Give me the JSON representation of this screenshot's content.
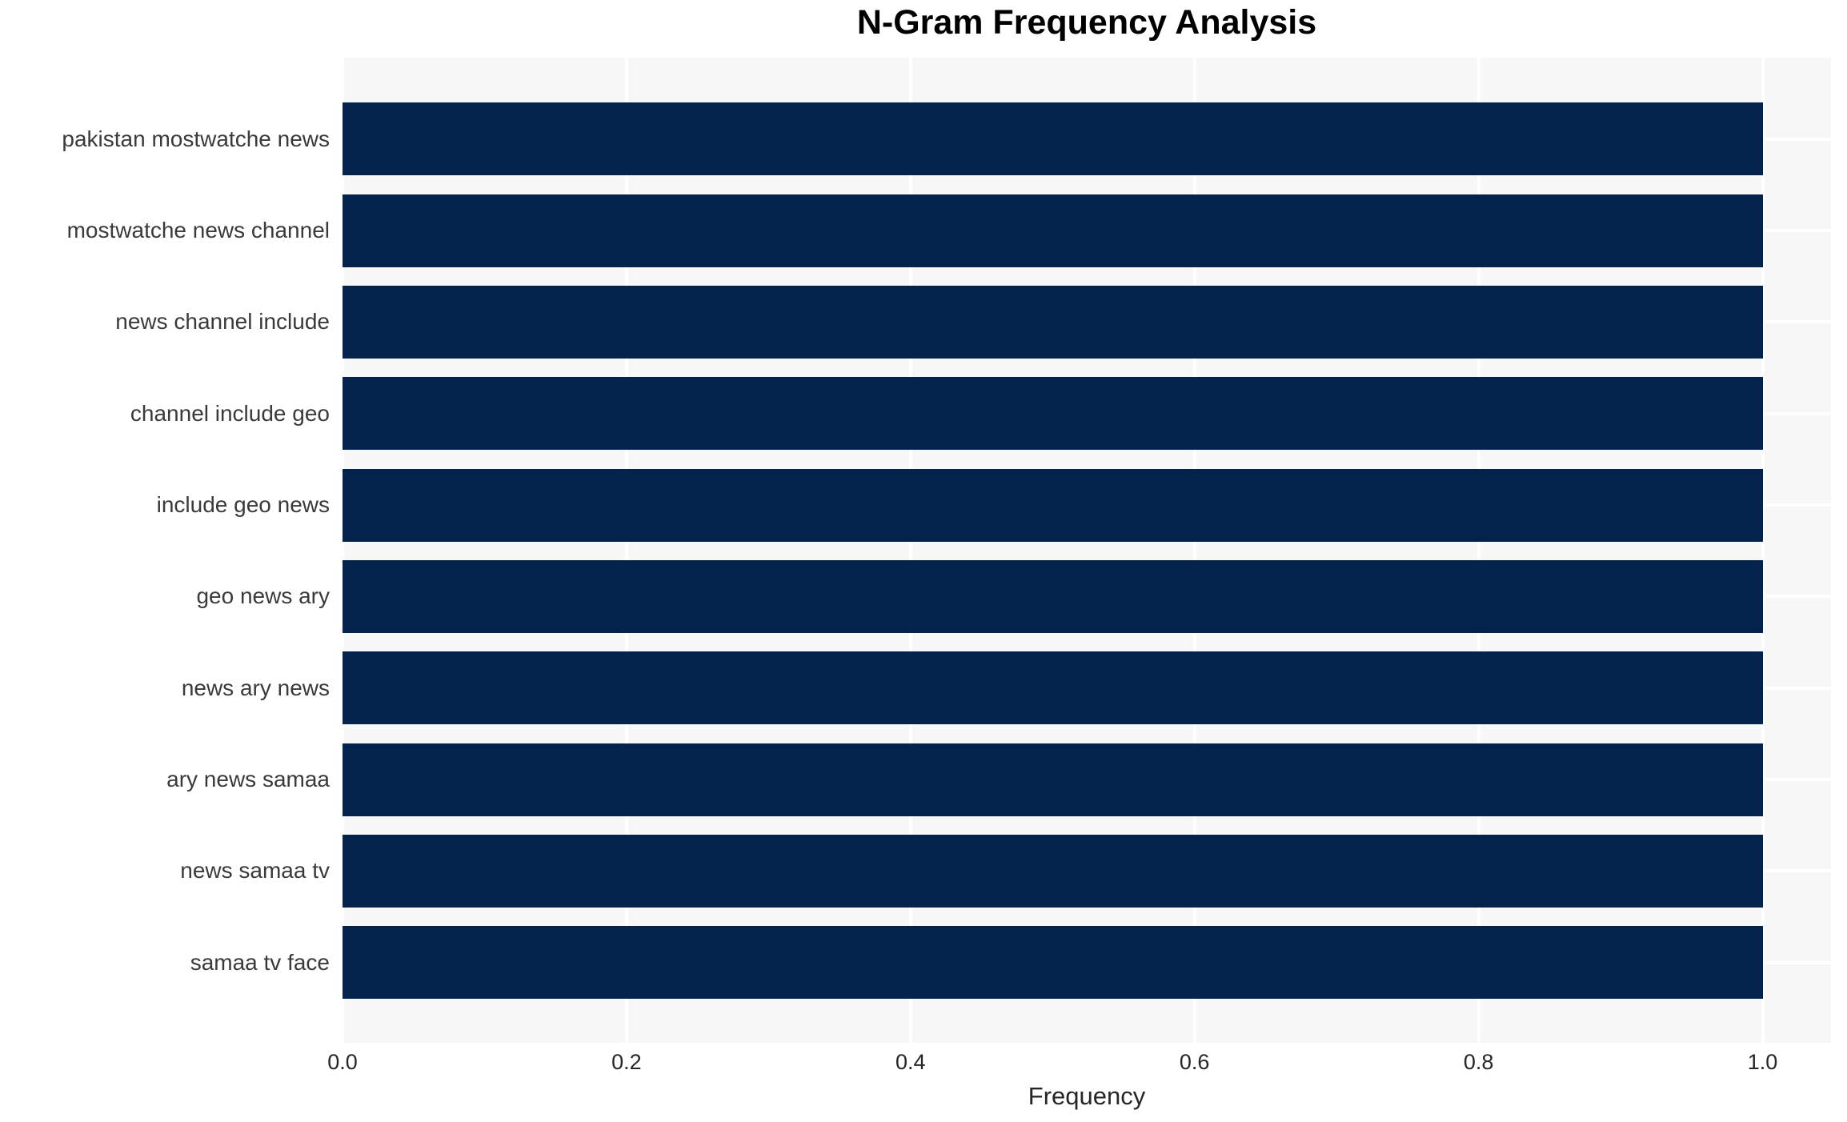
{
  "chart_data": {
    "type": "bar",
    "orientation": "horizontal",
    "title": "N-Gram Frequency Analysis",
    "xlabel": "Frequency",
    "ylabel": "",
    "categories": [
      "pakistan mostwatche news",
      "mostwatche news channel",
      "news channel include",
      "channel include geo",
      "include geo news",
      "geo news ary",
      "news ary news",
      "ary news samaa",
      "news samaa tv",
      "samaa tv face"
    ],
    "values": [
      1.0,
      1.0,
      1.0,
      1.0,
      1.0,
      1.0,
      1.0,
      1.0,
      1.0,
      1.0
    ],
    "xticks": [
      0.0,
      0.2,
      0.4,
      0.6,
      0.8,
      1.0
    ],
    "xtick_labels": [
      "0.0",
      "0.2",
      "0.4",
      "0.6",
      "0.8",
      "1.0"
    ],
    "xlim": [
      0,
      1.048
    ],
    "grid": true,
    "legend": false,
    "colors": {
      "bar": "#03234d",
      "plot_background": "#f7f7f7",
      "gridline": "#ffffff",
      "title_text": "#000000",
      "tick_text": "#262626",
      "category_text": "#3a3a3a",
      "figure_background": "#ffffff"
    }
  }
}
